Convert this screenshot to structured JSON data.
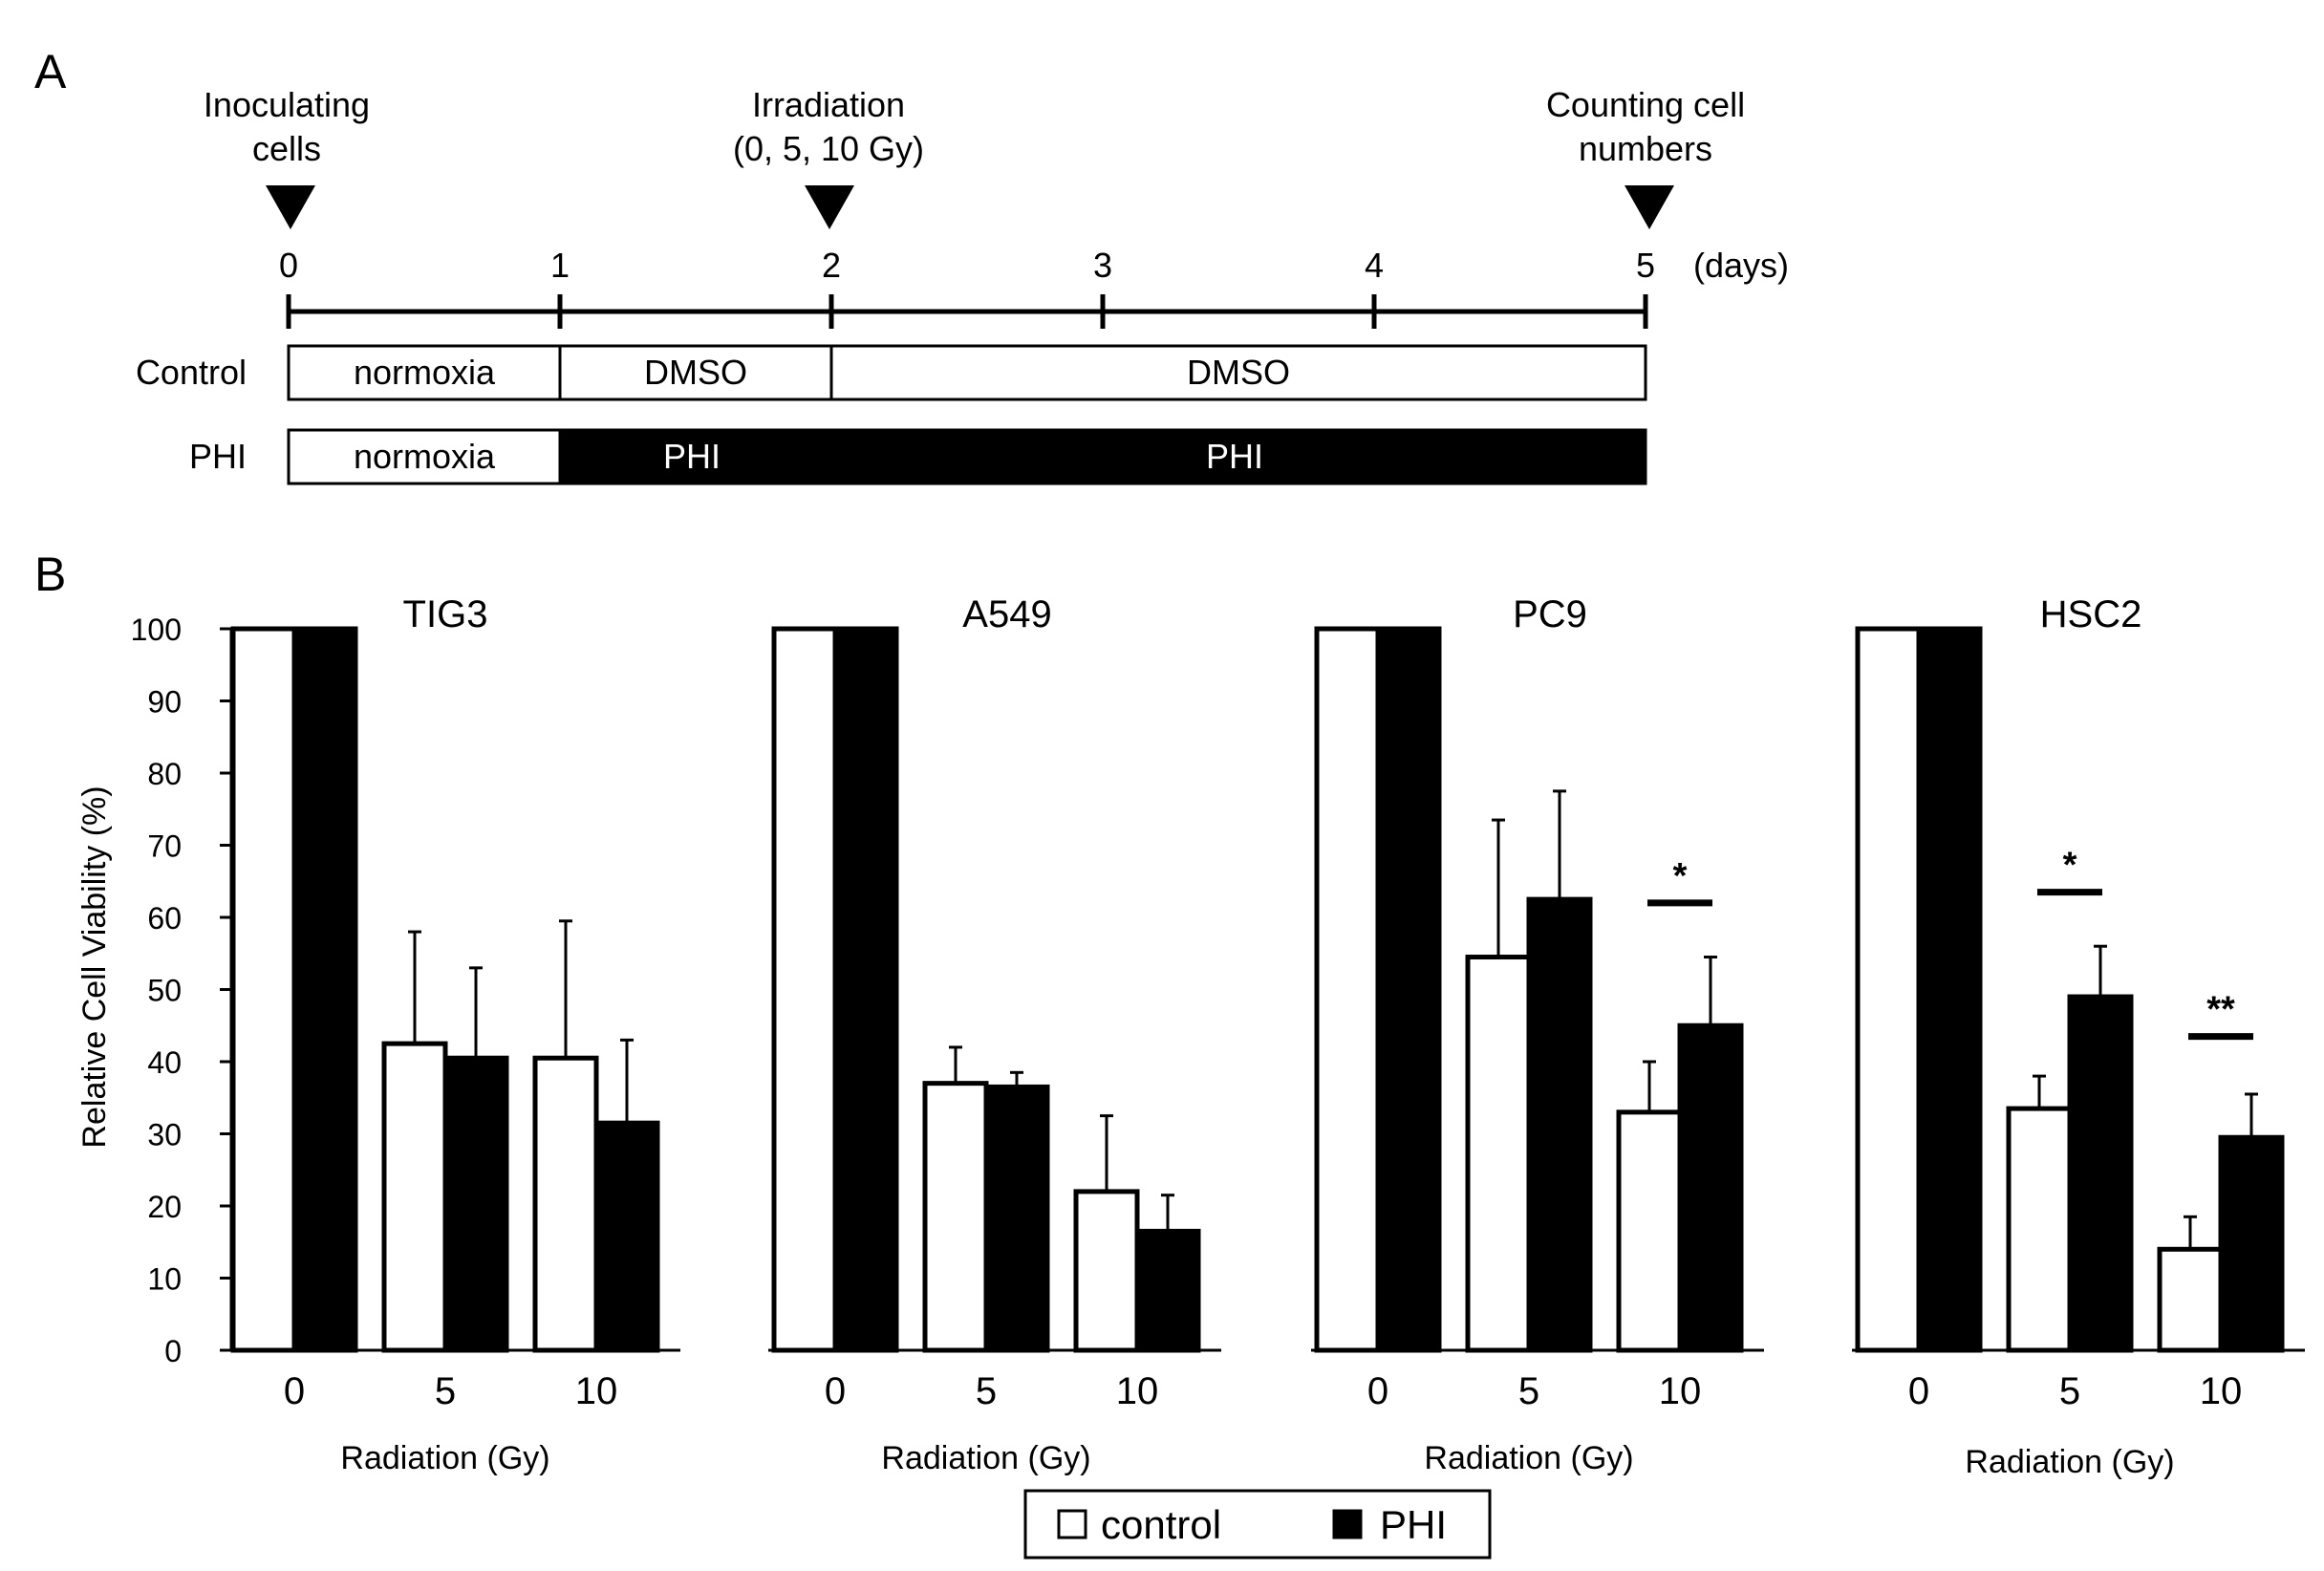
{
  "panel_a": {
    "label": "A",
    "events": [
      {
        "lines": [
          "Inoculating",
          "cells"
        ],
        "day": 0
      },
      {
        "lines": [
          "Irradiation",
          "(0, 5, 10 Gy)"
        ],
        "day": 2
      },
      {
        "lines": [
          "Counting cell",
          "numbers"
        ],
        "day": 5
      }
    ],
    "timeline": {
      "ticks": [
        "0",
        "1",
        "2",
        "3",
        "4",
        "5"
      ],
      "unit": "(days)"
    },
    "rows": [
      {
        "name": "Control",
        "segments": [
          {
            "label": "normoxia",
            "start": 0,
            "end": 1,
            "fill": "white"
          },
          {
            "label": "DMSO",
            "start": 1,
            "end": 2,
            "fill": "white"
          },
          {
            "label": "DMSO",
            "start": 2,
            "end": 5,
            "fill": "white"
          }
        ]
      },
      {
        "name": "PHI",
        "segments": [
          {
            "label": "normoxia",
            "start": 0,
            "end": 1,
            "fill": "white"
          },
          {
            "label": "PHI",
            "start": 1,
            "end": 2,
            "fill": "black"
          },
          {
            "label": "PHI",
            "start": 2,
            "end": 5,
            "fill": "black"
          }
        ]
      }
    ]
  },
  "panel_b": {
    "label": "B",
    "legend": [
      "control",
      "PHI"
    ]
  },
  "chart_data": [
    {
      "type": "bar",
      "title": "TIG3",
      "categories": [
        "0",
        "5",
        "10"
      ],
      "xlabel": "Radiation (Gy)",
      "ylabel": "Relative Cell Viability (%)",
      "ylim": [
        0,
        100
      ],
      "yticks": [
        "0",
        "10",
        "20",
        "30",
        "40",
        "50",
        "60",
        "70",
        "80",
        "90",
        "100"
      ],
      "series": [
        {
          "name": "control",
          "values": [
            100,
            42.5,
            40.5
          ],
          "errors": [
            0,
            15.5,
            19
          ]
        },
        {
          "name": "PHI",
          "values": [
            100,
            40.5,
            31.5
          ],
          "errors": [
            0,
            12.5,
            11.5
          ]
        }
      ],
      "significance": []
    },
    {
      "type": "bar",
      "title": "A549",
      "categories": [
        "0",
        "5",
        "10"
      ],
      "xlabel": "Radiation (Gy)",
      "ylabel": "Relative Cell Viability (%)",
      "ylim": [
        0,
        100
      ],
      "series": [
        {
          "name": "control",
          "values": [
            100,
            37,
            22
          ],
          "errors": [
            0,
            5,
            10.5
          ]
        },
        {
          "name": "PHI",
          "values": [
            100,
            36.5,
            16.5
          ],
          "errors": [
            0,
            2,
            5
          ]
        }
      ],
      "significance": []
    },
    {
      "type": "bar",
      "title": "PC9",
      "categories": [
        "0",
        "5",
        "10"
      ],
      "xlabel": "Radiation (Gy)",
      "ylabel": "Relative Cell Viability (%)",
      "ylim": [
        0,
        100
      ],
      "series": [
        {
          "name": "control",
          "values": [
            100,
            54.5,
            33
          ],
          "errors": [
            0,
            19,
            7
          ]
        },
        {
          "name": "PHI",
          "values": [
            100,
            62.5,
            45
          ],
          "errors": [
            0,
            15,
            9.5
          ]
        }
      ],
      "significance": [
        {
          "category": 2,
          "mark": "*",
          "value": 62
        }
      ]
    },
    {
      "type": "bar",
      "title": "HSC2",
      "categories": [
        "0",
        "5",
        "10"
      ],
      "xlabel": "Radiation (Gy)",
      "ylabel": "Relative Cell Viability (%)",
      "ylim": [
        0,
        100
      ],
      "series": [
        {
          "name": "control",
          "values": [
            100,
            33.5,
            14
          ],
          "errors": [
            0,
            4.5,
            4.5
          ]
        },
        {
          "name": "PHI",
          "values": [
            100,
            49,
            29.5
          ],
          "errors": [
            0,
            7,
            6
          ]
        }
      ],
      "significance": [
        {
          "category": 1,
          "mark": "*",
          "value": 63.5
        },
        {
          "category": 2,
          "mark": "**",
          "value": 43.5
        }
      ]
    }
  ]
}
